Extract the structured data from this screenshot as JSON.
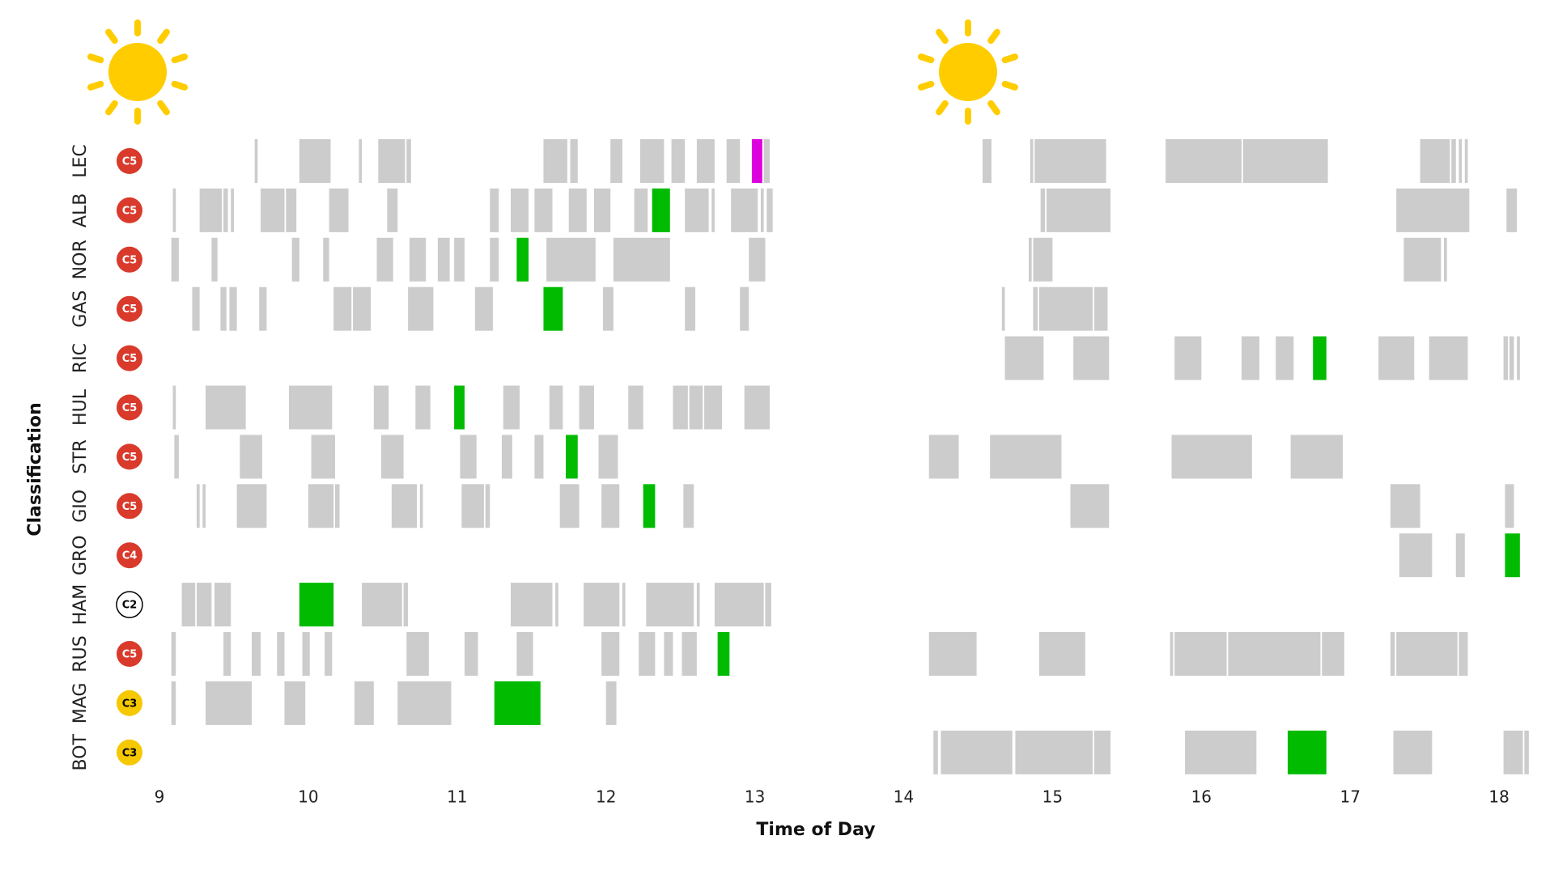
{
  "chart_data": {
    "type": "timeline",
    "x_label": "Time of Day",
    "y_label": "Classification",
    "xlim": [
      9,
      18.25
    ],
    "xticks": [
      9,
      10,
      11,
      12,
      13,
      14,
      15,
      16,
      17,
      18
    ],
    "segment_color": "#cccccc",
    "rows": [
      {
        "name": "LEC",
        "compound": "C5",
        "compound_color": "#d93a2b",
        "compound_text_color": "#ffffff",
        "segments": [
          [
            9.64,
            9.66
          ],
          [
            9.94,
            10.15
          ],
          [
            10.34,
            10.36
          ],
          [
            10.47,
            10.65
          ],
          [
            10.66,
            10.69
          ],
          [
            11.58,
            11.74
          ],
          [
            11.76,
            11.81
          ],
          [
            12.03,
            12.11
          ],
          [
            12.23,
            12.39
          ],
          [
            12.44,
            12.53
          ],
          [
            12.61,
            12.73
          ],
          [
            12.81,
            12.9
          ],
          [
            13.06,
            13.1
          ],
          [
            14.53,
            14.59
          ],
          [
            14.85,
            14.87
          ],
          [
            14.88,
            15.36
          ],
          [
            15.76,
            16.27
          ],
          [
            16.28,
            16.85
          ],
          [
            17.47,
            17.67
          ],
          [
            17.68,
            17.71
          ],
          [
            17.73,
            17.75
          ],
          [
            17.77,
            17.79
          ]
        ],
        "best": [
          12.98,
          13.05
        ],
        "best_color": "#dd00dd"
      },
      {
        "name": "ALB",
        "compound": "C5",
        "compound_color": "#d93a2b",
        "compound_text_color": "#ffffff",
        "segments": [
          [
            9.09,
            9.11
          ],
          [
            9.27,
            9.42
          ],
          [
            9.43,
            9.46
          ],
          [
            9.48,
            9.5
          ],
          [
            9.68,
            9.84
          ],
          [
            9.85,
            9.92
          ],
          [
            10.14,
            10.27
          ],
          [
            10.53,
            10.6
          ],
          [
            11.22,
            11.28
          ],
          [
            11.36,
            11.48
          ],
          [
            11.52,
            11.64
          ],
          [
            11.75,
            11.87
          ],
          [
            11.92,
            12.03
          ],
          [
            12.19,
            12.28
          ],
          [
            12.53,
            12.69
          ],
          [
            12.71,
            12.73
          ],
          [
            12.84,
            13.02
          ],
          [
            13.04,
            13.06
          ],
          [
            13.08,
            13.12
          ],
          [
            14.92,
            14.95
          ],
          [
            14.96,
            15.39
          ],
          [
            17.31,
            17.8
          ],
          [
            18.05,
            18.12
          ]
        ],
        "best": [
          12.31,
          12.43
        ],
        "best_color": "#00bb00"
      },
      {
        "name": "NOR",
        "compound": "C5",
        "compound_color": "#d93a2b",
        "compound_text_color": "#ffffff",
        "segments": [
          [
            9.08,
            9.13
          ],
          [
            9.35,
            9.39
          ],
          [
            9.89,
            9.94
          ],
          [
            10.1,
            10.14
          ],
          [
            10.46,
            10.57
          ],
          [
            10.68,
            10.79
          ],
          [
            10.87,
            10.95
          ],
          [
            10.98,
            11.05
          ],
          [
            11.22,
            11.28
          ],
          [
            11.6,
            11.93
          ],
          [
            12.05,
            12.43
          ],
          [
            12.96,
            13.07
          ],
          [
            14.84,
            14.86
          ],
          [
            14.87,
            15.0
          ],
          [
            17.36,
            17.61
          ],
          [
            17.63,
            17.65
          ]
        ],
        "best": [
          11.4,
          11.48
        ],
        "best_color": "#00bb00"
      },
      {
        "name": "GAS",
        "compound": "C5",
        "compound_color": "#d93a2b",
        "compound_text_color": "#ffffff",
        "segments": [
          [
            9.22,
            9.27
          ],
          [
            9.41,
            9.45
          ],
          [
            9.47,
            9.52
          ],
          [
            9.67,
            9.72
          ],
          [
            10.17,
            10.29
          ],
          [
            10.3,
            10.42
          ],
          [
            10.67,
            10.84
          ],
          [
            11.12,
            11.24
          ],
          [
            11.98,
            12.05
          ],
          [
            12.53,
            12.6
          ],
          [
            12.9,
            12.96
          ],
          [
            14.66,
            14.68
          ],
          [
            14.87,
            14.9
          ],
          [
            14.91,
            15.27
          ],
          [
            15.28,
            15.37
          ]
        ],
        "best": [
          11.58,
          11.71
        ],
        "best_color": "#00bb00"
      },
      {
        "name": "RIC",
        "compound": "C5",
        "compound_color": "#d93a2b",
        "compound_text_color": "#ffffff",
        "segments": [
          [
            14.68,
            14.94
          ],
          [
            15.14,
            15.38
          ],
          [
            15.82,
            16.0
          ],
          [
            16.27,
            16.39
          ],
          [
            16.5,
            16.62
          ],
          [
            17.19,
            17.43
          ],
          [
            17.53,
            17.79
          ],
          [
            18.03,
            18.06
          ],
          [
            18.07,
            18.1
          ],
          [
            18.12,
            18.14
          ]
        ],
        "best": [
          16.75,
          16.84
        ],
        "best_color": "#00bb00"
      },
      {
        "name": "HUL",
        "compound": "C5",
        "compound_color": "#d93a2b",
        "compound_text_color": "#ffffff",
        "segments": [
          [
            9.09,
            9.11
          ],
          [
            9.31,
            9.58
          ],
          [
            9.87,
            10.16
          ],
          [
            10.44,
            10.54
          ],
          [
            10.72,
            10.82
          ],
          [
            11.31,
            11.42
          ],
          [
            11.62,
            11.71
          ],
          [
            11.82,
            11.92
          ],
          [
            12.15,
            12.25
          ],
          [
            12.45,
            12.55
          ],
          [
            12.56,
            12.65
          ],
          [
            12.66,
            12.78
          ],
          [
            12.93,
            13.1
          ]
        ],
        "best": [
          10.98,
          11.05
        ],
        "best_color": "#00bb00"
      },
      {
        "name": "STR",
        "compound": "C5",
        "compound_color": "#d93a2b",
        "compound_text_color": "#ffffff",
        "segments": [
          [
            9.1,
            9.13
          ],
          [
            9.54,
            9.69
          ],
          [
            10.02,
            10.18
          ],
          [
            10.49,
            10.64
          ],
          [
            11.02,
            11.13
          ],
          [
            11.3,
            11.37
          ],
          [
            11.52,
            11.58
          ],
          [
            11.95,
            12.08
          ],
          [
            14.17,
            14.37
          ],
          [
            14.58,
            15.06
          ],
          [
            15.8,
            16.34
          ],
          [
            16.6,
            16.95
          ]
        ],
        "best": [
          11.73,
          11.81
        ],
        "best_color": "#00bb00"
      },
      {
        "name": "GIO",
        "compound": "C5",
        "compound_color": "#d93a2b",
        "compound_text_color": "#ffffff",
        "segments": [
          [
            9.25,
            9.27
          ],
          [
            9.29,
            9.31
          ],
          [
            9.52,
            9.72
          ],
          [
            10.0,
            10.17
          ],
          [
            10.18,
            10.21
          ],
          [
            10.56,
            10.73
          ],
          [
            10.75,
            10.77
          ],
          [
            11.03,
            11.18
          ],
          [
            11.19,
            11.22
          ],
          [
            11.69,
            11.82
          ],
          [
            11.97,
            12.09
          ],
          [
            12.52,
            12.59
          ],
          [
            15.12,
            15.38
          ],
          [
            17.27,
            17.47
          ],
          [
            18.04,
            18.1
          ]
        ],
        "best": [
          12.25,
          12.33
        ],
        "best_color": "#00bb00"
      },
      {
        "name": "GRO",
        "compound": "C4",
        "compound_color": "#d93a2b",
        "compound_text_color": "#ffffff",
        "segments": [
          [
            17.33,
            17.55
          ],
          [
            17.71,
            17.77
          ]
        ],
        "best": [
          18.04,
          18.14
        ],
        "best_color": "#00bb00"
      },
      {
        "name": "HAM",
        "compound": "C2",
        "compound_color": "#ffffff",
        "compound_text_color": "#000000",
        "segments": [
          [
            9.15,
            9.24
          ],
          [
            9.25,
            9.35
          ],
          [
            9.37,
            9.48
          ],
          [
            10.36,
            10.63
          ],
          [
            10.64,
            10.67
          ],
          [
            11.36,
            11.64
          ],
          [
            11.66,
            11.68
          ],
          [
            11.85,
            12.09
          ],
          [
            12.11,
            12.13
          ],
          [
            12.27,
            12.59
          ],
          [
            12.61,
            12.63
          ],
          [
            12.73,
            13.06
          ],
          [
            13.07,
            13.11
          ]
        ],
        "best": [
          9.94,
          10.17
        ],
        "best_color": "#00bb00"
      },
      {
        "name": "RUS",
        "compound": "C5",
        "compound_color": "#d93a2b",
        "compound_text_color": "#ffffff",
        "segments": [
          [
            9.08,
            9.11
          ],
          [
            9.43,
            9.48
          ],
          [
            9.62,
            9.68
          ],
          [
            9.79,
            9.84
          ],
          [
            9.96,
            10.01
          ],
          [
            10.11,
            10.16
          ],
          [
            10.66,
            10.81
          ],
          [
            11.05,
            11.14
          ],
          [
            11.4,
            11.51
          ],
          [
            11.97,
            12.09
          ],
          [
            12.22,
            12.33
          ],
          [
            12.39,
            12.45
          ],
          [
            12.51,
            12.61
          ],
          [
            14.17,
            14.49
          ],
          [
            14.91,
            15.22
          ],
          [
            15.79,
            15.81
          ],
          [
            15.82,
            16.17
          ],
          [
            16.18,
            16.8
          ],
          [
            16.81,
            16.96
          ],
          [
            17.27,
            17.3
          ],
          [
            17.31,
            17.72
          ],
          [
            17.73,
            17.79
          ]
        ],
        "best": [
          12.75,
          12.83
        ],
        "best_color": "#00bb00"
      },
      {
        "name": "MAG",
        "compound": "C3",
        "compound_color": "#f5c800",
        "compound_text_color": "#000000",
        "segments": [
          [
            9.08,
            9.11
          ],
          [
            9.31,
            9.62
          ],
          [
            9.84,
            9.98
          ],
          [
            10.31,
            10.44
          ],
          [
            10.6,
            10.96
          ],
          [
            12.0,
            12.07
          ]
        ],
        "best": [
          11.25,
          11.56
        ],
        "best_color": "#00bb00"
      },
      {
        "name": "BOT",
        "compound": "C3",
        "compound_color": "#f5c800",
        "compound_text_color": "#000000",
        "segments": [
          [
            14.2,
            14.23
          ],
          [
            14.25,
            14.73
          ],
          [
            14.75,
            15.27
          ],
          [
            15.28,
            15.39
          ],
          [
            15.89,
            16.37
          ],
          [
            17.29,
            17.55
          ],
          [
            18.03,
            18.16
          ],
          [
            18.17,
            18.2
          ]
        ],
        "best": [
          16.58,
          16.84
        ],
        "best_color": "#00bb00"
      }
    ]
  }
}
